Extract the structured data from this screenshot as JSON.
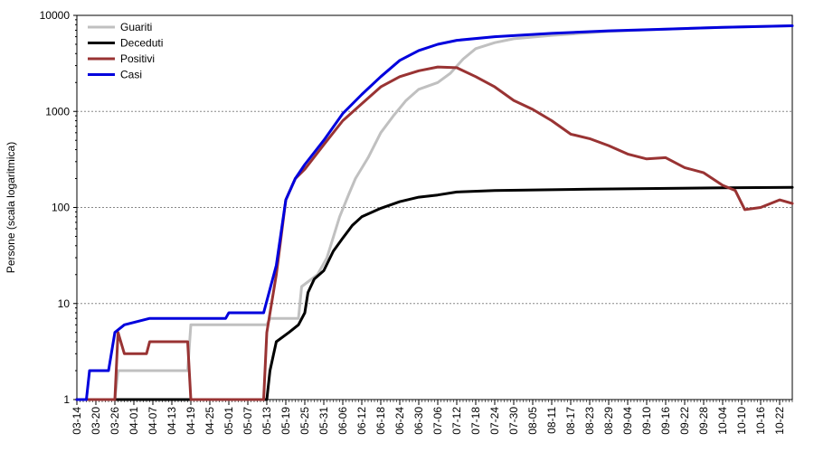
{
  "chart_data": {
    "type": "line",
    "ylabel": "Persone (scala logaritmica)",
    "xlabel": "",
    "y_scale": "log",
    "ylim": [
      1,
      10000
    ],
    "y_ticks": [
      1,
      10,
      100,
      1000,
      10000
    ],
    "y_tick_labels": [
      "1",
      "10",
      "100",
      "1000",
      "10000"
    ],
    "x_tick_labels": [
      "03-14",
      "03-20",
      "03-26",
      "04-01",
      "04-07",
      "04-13",
      "04-19",
      "04-25",
      "05-01",
      "05-07",
      "05-13",
      "05-19",
      "05-25",
      "05-31",
      "06-06",
      "06-12",
      "06-18",
      "06-24",
      "06-30",
      "07-06",
      "07-12",
      "07-18",
      "07-24",
      "07-30",
      "08-05",
      "08-11",
      "08-17",
      "08-23",
      "08-29",
      "09-04",
      "09-10",
      "09-16",
      "09-22",
      "09-28",
      "10-04",
      "10-10",
      "10-16",
      "10-22"
    ],
    "x_range": [
      "03-14",
      "10-26"
    ],
    "grid": "horizontal dotted at decades",
    "legend_position": "top-left",
    "series": [
      {
        "name": "Guariti",
        "color": "#c0c0c0",
        "points": [
          [
            "03-14",
            1
          ],
          [
            "03-26",
            1
          ],
          [
            "03-27",
            2
          ],
          [
            "04-18",
            2
          ],
          [
            "04-19",
            6
          ],
          [
            "05-13",
            6
          ],
          [
            "05-14",
            7
          ],
          [
            "05-23",
            7
          ],
          [
            "05-24",
            15
          ],
          [
            "05-29",
            20
          ],
          [
            "06-01",
            30
          ],
          [
            "06-05",
            80
          ],
          [
            "06-08",
            140
          ],
          [
            "06-10",
            200
          ],
          [
            "06-14",
            330
          ],
          [
            "06-18",
            600
          ],
          [
            "06-22",
            900
          ],
          [
            "06-26",
            1300
          ],
          [
            "06-30",
            1700
          ],
          [
            "07-06",
            2000
          ],
          [
            "07-10",
            2500
          ],
          [
            "07-14",
            3500
          ],
          [
            "07-18",
            4500
          ],
          [
            "07-24",
            5200
          ],
          [
            "07-30",
            5700
          ],
          [
            "08-11",
            6200
          ],
          [
            "08-29",
            6800
          ],
          [
            "09-16",
            7200
          ],
          [
            "10-04",
            7500
          ],
          [
            "10-26",
            7800
          ]
        ]
      },
      {
        "name": "Deceduti",
        "color": "#000000",
        "points": [
          [
            "03-14",
            1
          ],
          [
            "05-13",
            1
          ],
          [
            "05-14",
            2
          ],
          [
            "05-16",
            4
          ],
          [
            "05-20",
            5
          ],
          [
            "05-23",
            6
          ],
          [
            "05-25",
            8
          ],
          [
            "05-26",
            13
          ],
          [
            "05-28",
            18
          ],
          [
            "05-31",
            22
          ],
          [
            "06-03",
            35
          ],
          [
            "06-06",
            48
          ],
          [
            "06-09",
            65
          ],
          [
            "06-12",
            80
          ],
          [
            "06-18",
            98
          ],
          [
            "06-24",
            115
          ],
          [
            "06-30",
            128
          ],
          [
            "07-06",
            135
          ],
          [
            "07-12",
            145
          ],
          [
            "07-24",
            150
          ],
          [
            "08-23",
            155
          ],
          [
            "10-04",
            160
          ],
          [
            "10-26",
            162
          ]
        ]
      },
      {
        "name": "Positivi",
        "color": "#993333",
        "points": [
          [
            "03-14",
            1
          ],
          [
            "03-26",
            1
          ],
          [
            "03-27",
            5
          ],
          [
            "03-29",
            3
          ],
          [
            "04-05",
            3
          ],
          [
            "04-06",
            4
          ],
          [
            "04-18",
            4
          ],
          [
            "04-19",
            1
          ],
          [
            "05-12",
            1
          ],
          [
            "05-13",
            5
          ],
          [
            "05-16",
            20
          ],
          [
            "05-19",
            120
          ],
          [
            "05-22",
            200
          ],
          [
            "05-25",
            250
          ],
          [
            "05-31",
            450
          ],
          [
            "06-06",
            800
          ],
          [
            "06-12",
            1200
          ],
          [
            "06-18",
            1800
          ],
          [
            "06-24",
            2300
          ],
          [
            "06-30",
            2650
          ],
          [
            "07-06",
            2900
          ],
          [
            "07-12",
            2850
          ],
          [
            "07-18",
            2300
          ],
          [
            "07-24",
            1800
          ],
          [
            "07-30",
            1300
          ],
          [
            "08-05",
            1050
          ],
          [
            "08-11",
            800
          ],
          [
            "08-17",
            580
          ],
          [
            "08-23",
            520
          ],
          [
            "08-29",
            440
          ],
          [
            "09-04",
            360
          ],
          [
            "09-10",
            320
          ],
          [
            "09-16",
            330
          ],
          [
            "09-22",
            260
          ],
          [
            "09-28",
            230
          ],
          [
            "10-04",
            170
          ],
          [
            "10-08",
            150
          ],
          [
            "10-11",
            95
          ],
          [
            "10-16",
            100
          ],
          [
            "10-22",
            120
          ],
          [
            "10-26",
            110
          ]
        ]
      },
      {
        "name": "Casi",
        "color": "#0000dd",
        "points": [
          [
            "03-14",
            1
          ],
          [
            "03-17",
            1
          ],
          [
            "03-18",
            2
          ],
          [
            "03-24",
            2
          ],
          [
            "03-26",
            5
          ],
          [
            "03-29",
            6
          ],
          [
            "04-06",
            7
          ],
          [
            "04-30",
            7
          ],
          [
            "05-01",
            8
          ],
          [
            "05-12",
            8
          ],
          [
            "05-16",
            25
          ],
          [
            "05-19",
            120
          ],
          [
            "05-22",
            200
          ],
          [
            "05-25",
            280
          ],
          [
            "05-31",
            500
          ],
          [
            "06-06",
            950
          ],
          [
            "06-12",
            1500
          ],
          [
            "06-18",
            2300
          ],
          [
            "06-24",
            3400
          ],
          [
            "06-30",
            4300
          ],
          [
            "07-06",
            5000
          ],
          [
            "07-12",
            5500
          ],
          [
            "07-24",
            6000
          ],
          [
            "08-11",
            6500
          ],
          [
            "08-29",
            6900
          ],
          [
            "09-16",
            7200
          ],
          [
            "10-04",
            7500
          ],
          [
            "10-26",
            7800
          ]
        ]
      }
    ]
  }
}
